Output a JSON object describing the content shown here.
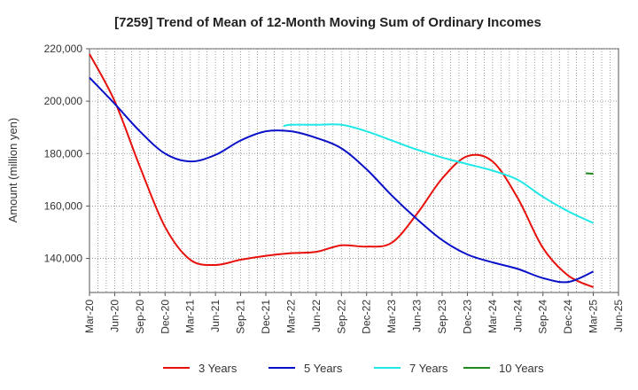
{
  "chart_data": {
    "type": "line",
    "title": "[7259]  Trend of Mean of 12-Month Moving Sum of Ordinary Incomes",
    "xlabel": "",
    "ylabel": "Amount (million yen)",
    "x_tick_labels": [
      "Mar-20",
      "Jun-20",
      "Sep-20",
      "Dec-20",
      "Mar-21",
      "Jun-21",
      "Sep-21",
      "Dec-21",
      "Mar-22",
      "Jun-22",
      "Sep-22",
      "Dec-22",
      "Mar-23",
      "Jun-23",
      "Sep-23",
      "Dec-23",
      "Mar-24",
      "Jun-24",
      "Sep-24",
      "Dec-24",
      "Mar-25",
      "Jun-25"
    ],
    "y_tick_labels": [
      "140,000",
      "160,000",
      "180,000",
      "200,000",
      "220,000"
    ],
    "y_ticks": [
      140000,
      160000,
      180000,
      200000,
      220000
    ],
    "ylim": [
      127000,
      220000
    ],
    "x_range_quarters": [
      0,
      21
    ],
    "grid": true,
    "legend_position": "bottom",
    "series": [
      {
        "name": "3 Years",
        "color": "#e8100b",
        "points": [
          [
            0,
            218000
          ],
          [
            1,
            200000
          ],
          [
            2,
            175000
          ],
          [
            3,
            152000
          ],
          [
            4,
            139500
          ],
          [
            5,
            137500
          ],
          [
            6,
            139500
          ],
          [
            7,
            141000
          ],
          [
            8,
            142000
          ],
          [
            9,
            142500
          ],
          [
            10,
            145000
          ],
          [
            11,
            144500
          ],
          [
            12,
            146000
          ],
          [
            13,
            157000
          ],
          [
            14,
            170500
          ],
          [
            15,
            179000
          ],
          [
            16,
            177000
          ],
          [
            17,
            163000
          ],
          [
            18,
            144000
          ],
          [
            19,
            133500
          ],
          [
            20,
            129000
          ]
        ]
      },
      {
        "name": "5 Years",
        "color": "#0a10c8",
        "points": [
          [
            0,
            209000
          ],
          [
            1,
            199000
          ],
          [
            2,
            188500
          ],
          [
            3,
            180000
          ],
          [
            4,
            177000
          ],
          [
            5,
            179500
          ],
          [
            6,
            185000
          ],
          [
            7,
            188500
          ],
          [
            8,
            188500
          ],
          [
            9,
            186000
          ],
          [
            10,
            182000
          ],
          [
            11,
            174000
          ],
          [
            12,
            164000
          ],
          [
            13,
            155000
          ],
          [
            14,
            147000
          ],
          [
            15,
            141500
          ],
          [
            16,
            138500
          ],
          [
            17,
            136000
          ],
          [
            18,
            132500
          ],
          [
            19,
            131000
          ],
          [
            20,
            135000
          ]
        ]
      },
      {
        "name": "7 Years",
        "color": "#1ee8e8",
        "points": [
          [
            7.7,
            190500
          ],
          [
            8,
            191000
          ],
          [
            9,
            191000
          ],
          [
            10,
            191000
          ],
          [
            11,
            188500
          ],
          [
            12,
            185000
          ],
          [
            13,
            181500
          ],
          [
            14,
            178500
          ],
          [
            15,
            176000
          ],
          [
            16,
            173500
          ],
          [
            17,
            170000
          ],
          [
            18,
            163500
          ],
          [
            19,
            158000
          ],
          [
            20,
            153500
          ]
        ]
      },
      {
        "name": "10 Years",
        "color": "#1e8a1e",
        "points": [
          [
            19.7,
            172500
          ],
          [
            20,
            172300
          ]
        ]
      }
    ]
  }
}
